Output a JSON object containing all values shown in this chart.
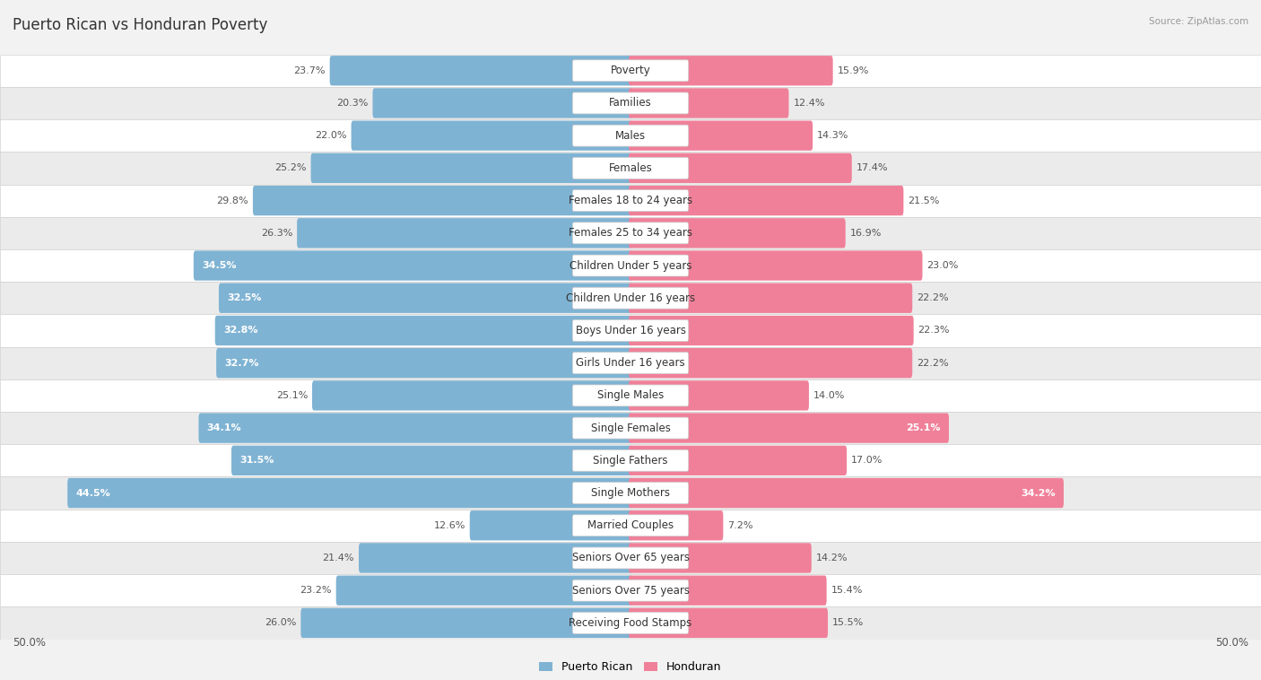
{
  "title": "Puerto Rican vs Honduran Poverty",
  "source": "Source: ZipAtlas.com",
  "categories": [
    "Poverty",
    "Families",
    "Males",
    "Females",
    "Females 18 to 24 years",
    "Females 25 to 34 years",
    "Children Under 5 years",
    "Children Under 16 years",
    "Boys Under 16 years",
    "Girls Under 16 years",
    "Single Males",
    "Single Females",
    "Single Fathers",
    "Single Mothers",
    "Married Couples",
    "Seniors Over 65 years",
    "Seniors Over 75 years",
    "Receiving Food Stamps"
  ],
  "puerto_rican": [
    23.7,
    20.3,
    22.0,
    25.2,
    29.8,
    26.3,
    34.5,
    32.5,
    32.8,
    32.7,
    25.1,
    34.1,
    31.5,
    44.5,
    12.6,
    21.4,
    23.2,
    26.0
  ],
  "honduran": [
    15.9,
    12.4,
    14.3,
    17.4,
    21.5,
    16.9,
    23.0,
    22.2,
    22.3,
    22.2,
    14.0,
    25.1,
    17.0,
    34.2,
    7.2,
    14.2,
    15.4,
    15.5
  ],
  "puerto_rican_color": "#7fb3d3",
  "honduran_color": "#f08099",
  "bg_color": "#f2f2f2",
  "row_white": "#ffffff",
  "row_gray": "#ebebeb",
  "axis_limit": 50.0,
  "label_fontsize": 8.5,
  "title_fontsize": 12,
  "value_fontsize": 8,
  "inside_threshold_pr": 30,
  "inside_threshold_hon": 25
}
